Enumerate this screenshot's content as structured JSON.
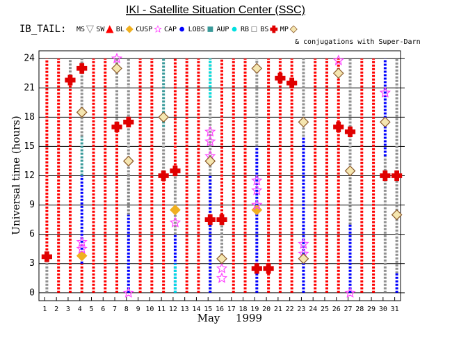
{
  "chart_data": {
    "type": "timeline",
    "title": "IKI - Satellite Situation Center (SSC)",
    "legend_title": "IB_TAIL:",
    "note": "& conjugations with Super-Darn",
    "ylabel": "Universal time (hours)",
    "xlabel": [
      "May",
      "1999"
    ],
    "xlim": [
      0.5,
      31.5
    ],
    "xticks": [
      1,
      2,
      3,
      4,
      5,
      6,
      7,
      8,
      9,
      10,
      11,
      12,
      13,
      14,
      15,
      16,
      17,
      18,
      19,
      20,
      21,
      22,
      23,
      24,
      25,
      26,
      27,
      28,
      29,
      30,
      31
    ],
    "ylim": [
      -0.8,
      24.8
    ],
    "yticks": [
      0,
      3,
      6,
      9,
      12,
      15,
      18,
      21,
      24
    ],
    "grid": true,
    "series": [
      {
        "name": "MS",
        "color": "#909090",
        "marker": "triangle-down",
        "intervals": [
          [
            1,
            0,
            3.5
          ],
          [
            3,
            21.5,
            24
          ],
          [
            4,
            16,
            24
          ],
          [
            7,
            17,
            24
          ],
          [
            8,
            12,
            24
          ],
          [
            11,
            12,
            17
          ],
          [
            12,
            6,
            12
          ],
          [
            15,
            0,
            24
          ],
          [
            16,
            3.5,
            8
          ],
          [
            19,
            15,
            24
          ],
          [
            23,
            16,
            24
          ],
          [
            27,
            12,
            24
          ],
          [
            30,
            0,
            14
          ],
          [
            31,
            2,
            24
          ]
        ]
      },
      {
        "name": "SW",
        "color": "#ff0000",
        "marker": "triangle",
        "intervals": [
          [
            1,
            4,
            24
          ],
          [
            2,
            0,
            24
          ],
          [
            3,
            0,
            21.5
          ],
          [
            4,
            0,
            3
          ],
          [
            5,
            0,
            24
          ],
          [
            6,
            0,
            24
          ],
          [
            7,
            0,
            17
          ],
          [
            9,
            0,
            24
          ],
          [
            10,
            0,
            24
          ],
          [
            11,
            0,
            12
          ],
          [
            12,
            12,
            24
          ],
          [
            13,
            0,
            24
          ],
          [
            14,
            0,
            24
          ],
          [
            16,
            8,
            24
          ],
          [
            17,
            0,
            24
          ],
          [
            18,
            0,
            24
          ],
          [
            20,
            0,
            24
          ],
          [
            21,
            0,
            24
          ],
          [
            22,
            0,
            24
          ],
          [
            24,
            0,
            24
          ],
          [
            25,
            0,
            24
          ],
          [
            26,
            0,
            24
          ],
          [
            28,
            0,
            24
          ],
          [
            29,
            0,
            24
          ]
        ]
      },
      {
        "name": "BL",
        "color": "#f0b020",
        "marker": "diamond",
        "points": [
          [
            4,
            3.8
          ],
          [
            4,
            18.5
          ],
          [
            12,
            8.5
          ],
          [
            19,
            8.5
          ]
        ]
      },
      {
        "name": "CUSP",
        "color": "#ff40ff",
        "marker": "star",
        "points": [
          [
            4,
            4.5
          ],
          [
            4,
            5.2
          ],
          [
            7,
            24
          ],
          [
            8,
            0
          ],
          [
            12,
            7.2
          ],
          [
            15,
            14
          ],
          [
            15,
            15.5
          ],
          [
            15,
            16.5
          ],
          [
            16,
            1.5
          ],
          [
            16,
            2.5
          ],
          [
            19,
            9
          ],
          [
            19,
            10.5
          ],
          [
            19,
            11.5
          ],
          [
            23,
            4
          ],
          [
            23,
            5
          ],
          [
            26,
            23.8
          ],
          [
            27,
            0
          ],
          [
            30,
            20.5
          ]
        ]
      },
      {
        "name": "CAP",
        "color": "#0000ff",
        "marker": "dot",
        "intervals": [
          [
            4,
            3,
            12
          ],
          [
            8,
            0,
            8
          ],
          [
            12,
            0,
            6
          ],
          [
            15,
            0,
            12
          ],
          [
            19,
            0,
            15
          ],
          [
            23,
            0,
            16
          ],
          [
            27,
            0,
            7
          ],
          [
            30,
            14,
            24
          ],
          [
            31,
            0,
            2
          ]
        ]
      },
      {
        "name": "LOBS",
        "color": "#3a9a9a",
        "marker": "square",
        "intervals": [
          [
            11,
            17,
            24
          ],
          [
            4,
            12,
            16
          ]
        ]
      },
      {
        "name": "AUP",
        "color": "#00e0e0",
        "marker": "dot",
        "intervals": [
          [
            12,
            0,
            3
          ],
          [
            15,
            20,
            24
          ]
        ]
      },
      {
        "name": "RB",
        "color": "#808080",
        "marker": "square-open",
        "intervals": [
          [
            8,
            8,
            12
          ],
          [
            27,
            7,
            12
          ]
        ]
      },
      {
        "name": "BS",
        "color": "#e00000",
        "marker": "cross",
        "points": [
          [
            1,
            3.7
          ],
          [
            3,
            21.8
          ],
          [
            4,
            23
          ],
          [
            7,
            17
          ],
          [
            8,
            17.5
          ],
          [
            11,
            12
          ],
          [
            12,
            12.5
          ],
          [
            15,
            7.5
          ],
          [
            16,
            7.5
          ],
          [
            19,
            2.5
          ],
          [
            20,
            2.5
          ],
          [
            21,
            22
          ],
          [
            22,
            21.5
          ],
          [
            26,
            17
          ],
          [
            27,
            16.5
          ],
          [
            30,
            12
          ],
          [
            31,
            12
          ]
        ]
      },
      {
        "name": "MP",
        "color": "#8b5a2b",
        "marker": "diamond-open",
        "points": [
          [
            4,
            18.5
          ],
          [
            7,
            23
          ],
          [
            8,
            13.5
          ],
          [
            11,
            18
          ],
          [
            15,
            13.5
          ],
          [
            16,
            3.5
          ],
          [
            19,
            23
          ],
          [
            23,
            3.5
          ],
          [
            23,
            17.5
          ],
          [
            26,
            22.5
          ],
          [
            27,
            12.5
          ],
          [
            30,
            17.5
          ],
          [
            31,
            8
          ]
        ]
      }
    ]
  }
}
